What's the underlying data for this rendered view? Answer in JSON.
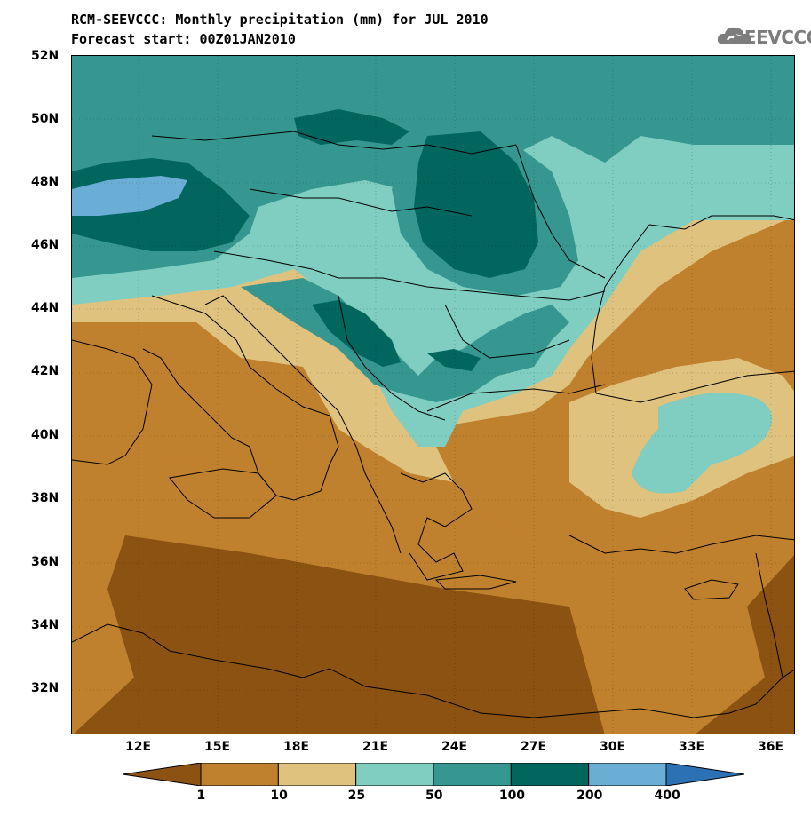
{
  "title": {
    "line1": "RCM-SEEVCCC: Monthly precipitation (mm) for JUL 2010",
    "line2": "Forecast start: 00Z01JAN2010"
  },
  "logo": {
    "text": "SEEVCCC"
  },
  "axes": {
    "lat_labels": [
      "52N",
      "50N",
      "48N",
      "46N",
      "44N",
      "42N",
      "40N",
      "38N",
      "36N",
      "34N",
      "32N"
    ],
    "lon_labels": [
      "12E",
      "15E",
      "18E",
      "21E",
      "24E",
      "27E",
      "30E",
      "33E",
      "36E"
    ]
  },
  "colorbar": {
    "labels": [
      "1",
      "10",
      "25",
      "50",
      "100",
      "200",
      "400"
    ],
    "colors": [
      "#8c5211",
      "#c0812f",
      "#dfc27d",
      "#80cdc1",
      "#35978f",
      "#01665e",
      "#6aaed6",
      "#2b71b3"
    ]
  },
  "chart_data": {
    "type": "heatmap",
    "title": "RCM-SEEVCCC: Monthly precipitation (mm) for JUL 2010",
    "subtitle": "Forecast start: 00Z01JAN2010",
    "x_range": [
      9.5,
      37
    ],
    "y_range": [
      30.5,
      52
    ],
    "levels_mm": [
      1,
      10,
      25,
      50,
      100,
      200,
      400
    ]
  }
}
